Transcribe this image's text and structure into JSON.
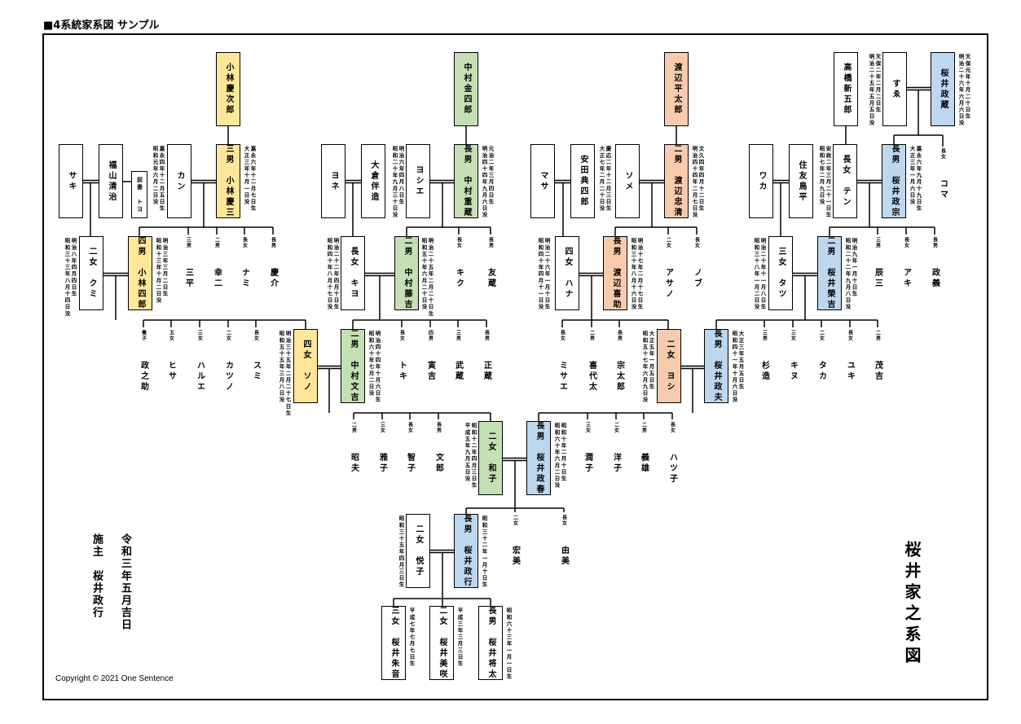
{
  "header": {
    "title": "■4系統家系図 サンプル"
  },
  "family_title": "桜井家之系図",
  "sponsor": {
    "label": "施主　桜井政行",
    "date": "令和三年五月吉日"
  },
  "copyright": "Copyright © 2021 One Sentence",
  "colors": {
    "yellow": "#FFE699",
    "green": "#C5E0B4",
    "orange": "#F8CBAD",
    "blue": "#BDD7EE",
    "white": "#FFFFFF"
  },
  "members": {
    "kojiro": {
      "relation": "",
      "name": "小林慶次郎",
      "color": "yellow"
    },
    "kinshiro": {
      "relation": "",
      "name": "中村金四郎",
      "color": "green"
    },
    "heitaro": {
      "relation": "",
      "name": "渡辺平太郎",
      "color": "orange"
    },
    "shingoro": {
      "relation": "",
      "name": "高橋新五郎",
      "color": "white"
    },
    "sue": {
      "relation": "",
      "name": "すゑ",
      "color": "white",
      "born": "天保二年二月二日生",
      "died": "明治二十五年五月五日没"
    },
    "masazo": {
      "relation": "",
      "name": "桜井政蔵",
      "color": "blue",
      "born": "天保元年十月二十日生",
      "died": "明治二十六年六月六日没"
    },
    "saki": {
      "relation": "",
      "name": "サキ",
      "color": "white"
    },
    "seiji": {
      "relation": "",
      "name": "福山清治",
      "color": "white"
    },
    "toyo": {
      "relation": "前妻",
      "name": "トヨ",
      "color": "white"
    },
    "kan": {
      "relation": "",
      "name": "カン",
      "color": "white",
      "born": "嘉永四年十二月五日生",
      "died": "昭和元年六月二日没"
    },
    "keizo": {
      "relation": "三男",
      "name": "小林慶三",
      "color": "yellow",
      "born": "嘉永六年十二月七日生",
      "died": "大正三年十月一日没"
    },
    "yone": {
      "relation": "",
      "name": "ヨネ",
      "color": "white"
    },
    "banzo": {
      "relation": "",
      "name": "大倉伴造",
      "color": "white"
    },
    "yoshie": {
      "relation": "",
      "name": "ヨシエ",
      "color": "white",
      "born": "明治六年四月八日生",
      "died": "昭和二十年九月三十日没"
    },
    "juzo": {
      "relation": "長男",
      "name": "中村重蔵",
      "color": "green",
      "born": "元治二年三月四日生",
      "died": "明治四十四年九月六日没"
    },
    "masa": {
      "relation": "",
      "name": "マサ",
      "color": "white"
    },
    "tenshiro": {
      "relation": "",
      "name": "安田典四郎",
      "color": "white"
    },
    "some": {
      "relation": "",
      "name": "ソメ",
      "color": "white",
      "born": "慶応二年十二月三日生",
      "died": "大正七年二月二十日没"
    },
    "tadakiyo": {
      "relation": "二男",
      "name": "渡辺忠清",
      "color": "orange",
      "born": "文久四年四月十二日生",
      "died": "明治四十四年二月七日没"
    },
    "waka": {
      "relation": "",
      "name": "ワカ",
      "color": "white"
    },
    "torihei": {
      "relation": "",
      "name": "住友鳥平",
      "color": "white"
    },
    "ten": {
      "relation": "長女",
      "name": "テン",
      "color": "white",
      "born": "安政二年三月二十一日生",
      "died": "昭和七年二月九日没"
    },
    "masamune": {
      "relation": "長男",
      "name": "桜井政宗",
      "color": "blue",
      "born": "嘉永六年九月十九日生",
      "died": "大正三年一月六日没"
    },
    "kumi": {
      "relation": "二女",
      "name": "クミ",
      "color": "white",
      "born": "明治八年四月四日生",
      "died": "昭和三十三年八月十四日没"
    },
    "shiro": {
      "relation": "四男",
      "name": "小林四郎",
      "color": "yellow",
      "born": "明治三年三月二日生",
      "died": "昭和十三年十月二日没"
    },
    "kiyo": {
      "relation": "長女",
      "name": "キヨ",
      "color": "white",
      "born": "明治二十二年四月十日生",
      "died": "昭和四十年八月十七日没"
    },
    "tokichi": {
      "relation": "二男",
      "name": "中村藤吉",
      "color": "green",
      "born": "明治二十五年二月二十日生",
      "died": "昭和五十年六月二十日没"
    },
    "hana": {
      "relation": "四女",
      "name": "ハナ",
      "color": "white",
      "born": "明治二十六年一月十日生",
      "died": "昭和四十年四月十一日没"
    },
    "kisuke": {
      "relation": "長男",
      "name": "渡辺喜助",
      "color": "orange",
      "born": "明治十七年二月十七日生",
      "died": "昭和三十年八月十六日没"
    },
    "tatsu": {
      "relation": "三女",
      "name": "タツ",
      "color": "white",
      "born": "明治二十年十一月八日生",
      "died": "昭和三十八年一月二日没"
    },
    "eikichi": {
      "relation": "二男",
      "name": "桜井榮吉",
      "color": "blue",
      "born": "明治九年一月十日生",
      "died": "昭和二十二年九月八日没"
    },
    "sono": {
      "relation": "四女",
      "name": "ソノ",
      "color": "yellow",
      "born": "明治三十五年二月二十七日生",
      "died": "昭和五十五年三月八日没"
    },
    "bunkichi": {
      "relation": "二男",
      "name": "中村文吉",
      "color": "green",
      "born": "明治四十四年十月六日生",
      "died": "昭和六十年七月二日没"
    },
    "yoshi": {
      "relation": "二女",
      "name": "ヨシ",
      "color": "orange",
      "born": "大正五年一月五日生",
      "died": "昭和五十七年六月九日没"
    },
    "masao": {
      "relation": "長男",
      "name": "桜井政夫",
      "color": "blue",
      "born": "大正三年五月五日生",
      "died": "昭和四十一年十月六日没"
    },
    "kazuko": {
      "relation": "二女",
      "name": "和子",
      "color": "green",
      "born": "昭和十二年四月三日生",
      "died": "平成五年九月五日没"
    },
    "masaharu": {
      "relation": "長男",
      "name": "桜井政春",
      "color": "blue",
      "born": "昭和十年二月十日生",
      "died": "昭和六十年六月二日没"
    },
    "etsuko": {
      "relation": "二女",
      "name": "悦子",
      "color": "white",
      "born": "昭和三十五年四月三日生"
    },
    "masayuki": {
      "relation": "長男",
      "name": "桜井政行",
      "color": "blue",
      "born": "昭和三十二年一月十日生"
    },
    "akane": {
      "relation": "三女",
      "name": "桜井朱音",
      "color": "white",
      "born": "平成七年七月七日生"
    },
    "misaki": {
      "relation": "二女",
      "name": "桜井美咲",
      "color": "white",
      "born": "平成三年三月三日生"
    },
    "shota": {
      "relation": "長男",
      "name": "桜井将太",
      "color": "white",
      "born": "昭和六十三年一月一日生"
    }
  },
  "children": {
    "koma": {
      "relation": "長女",
      "name": "コマ"
    },
    "sanpei": {
      "relation": "三男",
      "name": "三平"
    },
    "koji": {
      "relation": "二男",
      "name": "幸二"
    },
    "nami": {
      "relation": "長女",
      "name": "ナミ"
    },
    "keisuke": {
      "relation": "長男",
      "name": "慶介"
    },
    "kiku": {
      "relation": "長女",
      "name": "キク"
    },
    "tomozo": {
      "relation": "長男",
      "name": "友蔵"
    },
    "asano": {
      "relation": "二女",
      "name": "アサノ"
    },
    "nobu": {
      "relation": "長女",
      "name": "ノブ"
    },
    "tatsuzo": {
      "relation": "三男",
      "name": "辰三"
    },
    "aki": {
      "relation": "長女",
      "name": "アキ"
    },
    "masayoshi": {
      "relation": "長男",
      "name": "政義"
    },
    "masanosuke": {
      "relation": "養子",
      "name": "政之助"
    },
    "hisa": {
      "relation": "五女",
      "name": "ヒサ"
    },
    "harue": {
      "relation": "三女",
      "name": "ハルエ"
    },
    "katsuno": {
      "relation": "二女",
      "name": "カツノ"
    },
    "sumi": {
      "relation": "長女",
      "name": "スミ"
    },
    "toki": {
      "relation": "長女",
      "name": "トキ"
    },
    "torakichi": {
      "relation": "四男",
      "name": "寅吉"
    },
    "takezo": {
      "relation": "三男",
      "name": "武蔵"
    },
    "shozo": {
      "relation": "長男",
      "name": "正蔵"
    },
    "misae": {
      "relation": "長女",
      "name": "ミサエ"
    },
    "kiyota": {
      "relation": "二男",
      "name": "喜代太"
    },
    "sotaro": {
      "relation": "長男",
      "name": "宗太郎"
    },
    "sugizo": {
      "relation": "三男",
      "name": "杉造"
    },
    "kinu": {
      "relation": "三女",
      "name": "キヌ"
    },
    "taka": {
      "relation": "二女",
      "name": "タカ"
    },
    "yuki": {
      "relation": "長女",
      "name": "ユキ"
    },
    "mokichi": {
      "relation": "二男",
      "name": "茂吉"
    },
    "akio": {
      "relation": "二男",
      "name": "昭夫"
    },
    "masako": {
      "relation": "三女",
      "name": "雅子"
    },
    "tomoko": {
      "relation": "長女",
      "name": "智子"
    },
    "fumio": {
      "relation": "長男",
      "name": "文郎"
    },
    "junko": {
      "relation": "三女",
      "name": "潤子"
    },
    "yoko": {
      "relation": "二女",
      "name": "洋子"
    },
    "yoshio": {
      "relation": "二男",
      "name": "義雄"
    },
    "hatsuko": {
      "relation": "長女",
      "name": "ハツ子"
    },
    "hiromi": {
      "relation": "二女",
      "name": "宏美"
    },
    "yumi": {
      "relation": "長女",
      "name": "由美"
    }
  }
}
